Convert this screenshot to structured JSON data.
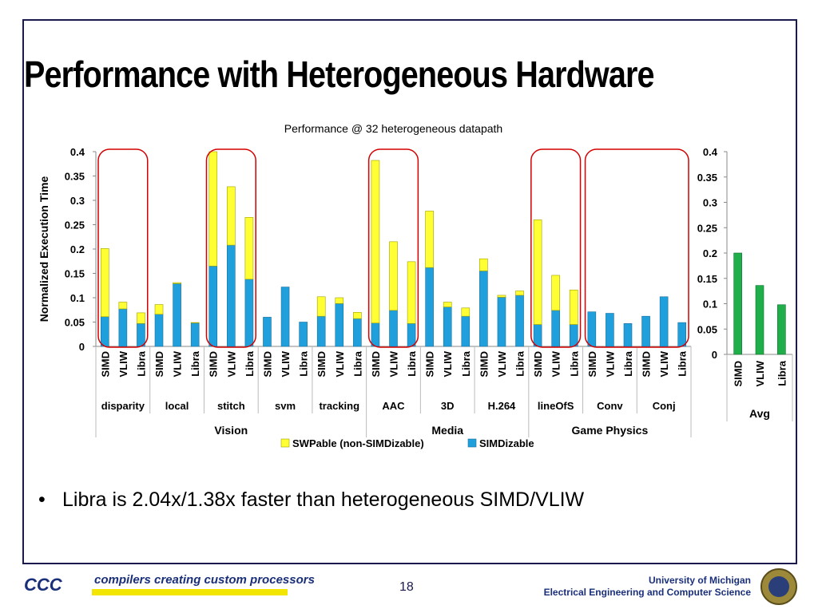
{
  "slide": {
    "title": "Performance with Heterogeneous Hardware",
    "bullet": "Libra is 2.04x/1.38x faster than heterogeneous SIMD/VLIW",
    "page_number": "18",
    "footer_left_logo": "CCC",
    "footer_left_tagline": "compilers creating custom processors",
    "footer_right_line1": "University of Michigan",
    "footer_right_line2": "Electrical Engineering and Computer Science"
  },
  "colors": {
    "swpable": "#ffff33",
    "simdizable": "#1fa0dc",
    "avg": "#1fae4a",
    "highlight": "#d40000"
  },
  "chart_data": [
    {
      "type": "bar",
      "stacked": true,
      "title": "Performance @ 32 heterogeneous datapath",
      "ylabel": "Normalized Execution Time",
      "xlabel": "",
      "ylim": [
        0,
        0.4
      ],
      "yticks": [
        "0",
        "0.05",
        "0.1",
        "0.15",
        "0.2",
        "0.25",
        "0.3",
        "0.35",
        "0.4"
      ],
      "legend_position": "bottom",
      "groups": [
        {
          "name": "Vision",
          "benchmarks": [
            "disparity",
            "local",
            "stitch",
            "svm",
            "tracking"
          ]
        },
        {
          "name": "Media",
          "benchmarks": [
            "AAC",
            "3D",
            "H.264"
          ]
        },
        {
          "name": "Game Physics",
          "benchmarks": [
            "lineOfS",
            "Conv",
            "Conj"
          ]
        }
      ],
      "categories": [
        "disparity SIMD",
        "disparity VLIW",
        "disparity Libra",
        "local SIMD",
        "local VLIW",
        "local Libra",
        "stitch SIMD",
        "stitch VLIW",
        "stitch Libra",
        "svm SIMD",
        "svm VLIW",
        "svm Libra",
        "tracking SIMD",
        "tracking VLIW",
        "tracking Libra",
        "AAC SIMD",
        "AAC VLIW",
        "AAC Libra",
        "3D SIMD",
        "3D VLIW",
        "3D Libra",
        "H.264 SIMD",
        "H.264 VLIW",
        "H.264 Libra",
        "lineOfS SIMD",
        "lineOfS VLIW",
        "lineOfS Libra",
        "Conv SIMD",
        "Conv VLIW",
        "Conv Libra",
        "Conj SIMD",
        "Conj VLIW",
        "Conj Libra"
      ],
      "bar_labels": [
        "SIMD",
        "VLIW",
        "Libra"
      ],
      "series": [
        {
          "name": "SIMDizable",
          "values": [
            0.061,
            0.077,
            0.047,
            0.066,
            0.129,
            0.048,
            0.165,
            0.208,
            0.138,
            0.06,
            0.122,
            0.05,
            0.062,
            0.088,
            0.057,
            0.048,
            0.074,
            0.047,
            0.162,
            0.081,
            0.062,
            0.155,
            0.101,
            0.105,
            0.045,
            0.074,
            0.045,
            0.071,
            0.068,
            0.047,
            0.062,
            0.102,
            0.049
          ]
        },
        {
          "name": "SWPable (non-SIMDizable)",
          "values": [
            0.14,
            0.014,
            0.022,
            0.02,
            0.002,
            0.001,
            0.235,
            0.12,
            0.127,
            0.0,
            0.0,
            0.0,
            0.04,
            0.012,
            0.013,
            0.334,
            0.141,
            0.127,
            0.116,
            0.01,
            0.017,
            0.025,
            0.004,
            0.009,
            0.215,
            0.072,
            0.071,
            0.0,
            0.0,
            0.0,
            0.0,
            0.0,
            0.0
          ]
        }
      ],
      "highlighted_benchmarks": [
        "disparity",
        "stitch",
        "AAC",
        "lineOfS",
        "Conv + Conj"
      ]
    },
    {
      "type": "bar",
      "title": "",
      "ylim": [
        0,
        0.4
      ],
      "yticks": [
        "0",
        "0.05",
        "0.1",
        "0.15",
        "0.2",
        "0.25",
        "0.3",
        "0.35",
        "0.4"
      ],
      "group_label": "Avg",
      "categories": [
        "SIMD",
        "VLIW",
        "Libra"
      ],
      "values": [
        0.2,
        0.136,
        0.098
      ]
    }
  ]
}
